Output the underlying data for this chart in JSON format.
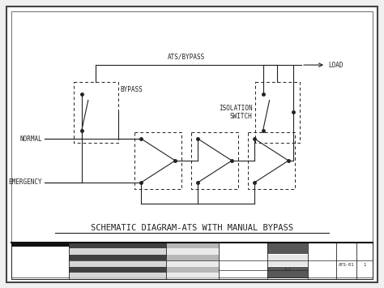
{
  "title": "SCHEMATIC DIAGRAM-ATS WITH MANUAL BYPASS",
  "bg_color": "#f0f0f0",
  "inner_bg": "#ffffff",
  "line_color": "#222222",
  "labels": {
    "ats_bypass": "ATS/BYPASS",
    "load": "LOAD",
    "bypass": "BYPASS",
    "isolation_switch_1": "ISOLATION",
    "isolation_switch_2": "SWITCH",
    "normal": "NORMAL",
    "emergency": "EMERGENCY"
  },
  "title_fontsize": 7.5,
  "label_fontsize": 5.5,
  "small_fontsize": 4.0,
  "lw": 0.8,
  "dlw": 0.7,
  "border_lw": 1.2,
  "border_inner_lw": 0.6
}
